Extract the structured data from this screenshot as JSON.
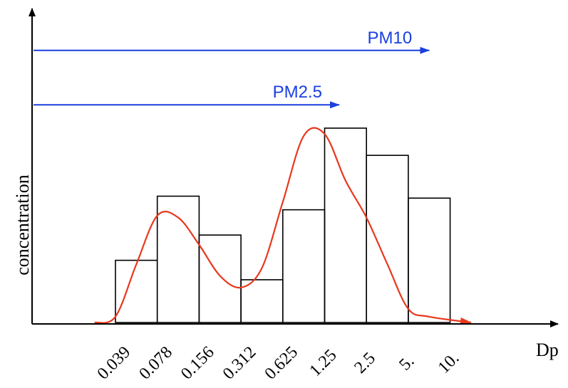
{
  "chart_data": {
    "type": "bar",
    "xlabel": "Dp",
    "ylabel": "concentration",
    "tick_labels": [
      "0.039",
      "0.078",
      "0.156",
      "0.312",
      "0.625",
      "1.25",
      "2.5",
      "5.",
      "10."
    ],
    "bins": [
      {
        "from": "0.039",
        "to": "0.078",
        "value": 0.32
      },
      {
        "from": "0.078",
        "to": "0.156",
        "value": 0.65
      },
      {
        "from": "0.156",
        "to": "0.312",
        "value": 0.45
      },
      {
        "from": "0.312",
        "to": "0.625",
        "value": 0.22
      },
      {
        "from": "0.625",
        "to": "1.25",
        "value": 0.58
      },
      {
        "from": "1.25",
        "to": "2.5",
        "value": 1.0
      },
      {
        "from": "2.5",
        "to": "5.",
        "value": 0.86
      },
      {
        "from": "5.",
        "to": "10.",
        "value": 0.64
      }
    ],
    "series": [
      {
        "type": "line",
        "color": "#e8381e",
        "points": [
          [
            -0.5,
            0.0
          ],
          [
            0.0,
            0.03
          ],
          [
            0.5,
            0.3
          ],
          [
            1.0,
            0.55
          ],
          [
            1.5,
            0.54
          ],
          [
            2.0,
            0.4
          ],
          [
            2.5,
            0.24
          ],
          [
            3.0,
            0.18
          ],
          [
            3.5,
            0.28
          ],
          [
            4.0,
            0.62
          ],
          [
            4.5,
            0.96
          ],
          [
            5.0,
            0.97
          ],
          [
            5.5,
            0.73
          ],
          [
            6.0,
            0.54
          ],
          [
            6.5,
            0.3
          ],
          [
            7.0,
            0.07
          ],
          [
            7.5,
            0.03
          ],
          [
            8.5,
            0.0
          ]
        ]
      }
    ],
    "ranges": [
      {
        "label": "PM10",
        "to_x": 7.5,
        "level": 1.4,
        "color": "#1a3fe0"
      },
      {
        "label": "PM2.5",
        "to_x": 5.35,
        "level": 1.12,
        "color": "#1a3fe0"
      }
    ],
    "ylim": [
      0,
      1.6
    ],
    "xlim": [
      -1.0,
      9.0
    ]
  }
}
